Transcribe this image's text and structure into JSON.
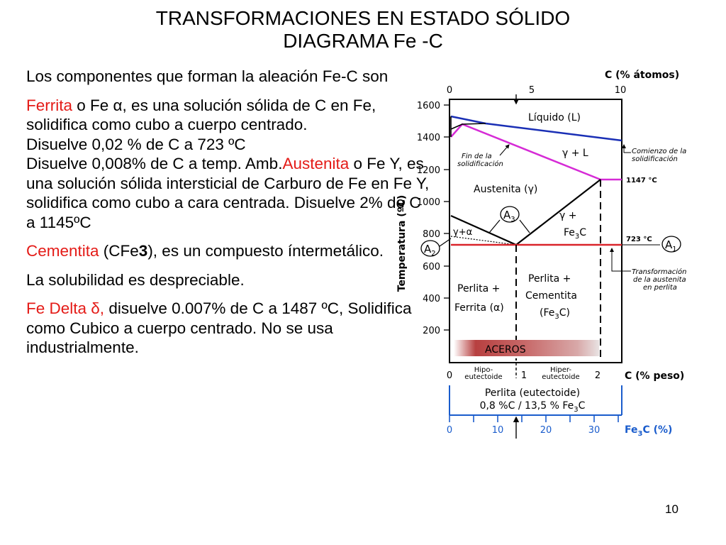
{
  "slide": {
    "title_line1": "TRANSFORMACIONES EN ESTADO SÓLIDO",
    "title_line2": "DIAGRAMA Fe -C",
    "page_number": "10"
  },
  "text": {
    "intro": "Los componentes que forman la aleación Fe-C son",
    "ferrita_term": "Ferrita",
    "ferrita_desc": " o Fe α, es una solución sólida de C en Fe, solidifica como cubo a cuerpo centrado.",
    "ferrita_line2": "Disuelve 0,02 % de C a 723 ºC",
    "ferrita_line3": "Disuelve  0,008% de C a temp. Amb.",
    "austenita_term": "Austenita",
    "austenita_desc": " o  Fe Y, es una solución sólida intersticial de Carburo de Fe en Fe Y, solidifica como cubo a cara centrada.     Disuelve 2% de C a 1145ºC",
    "cementita_term": "Cementita",
    "cementita_desc_a": " (CFe",
    "cementita_sub": "3",
    "cementita_desc_b": "), es un compuesto íntermetálico.",
    "solubilidad": "La solubilidad es despreciable.",
    "delta_term": "Fe Delta δ,",
    "delta_desc": " disuelve 0.007% de C a 1487 ºC, Solidifica como Cubico a cuerpo centrado. No se usa industrialmente."
  },
  "diagram": {
    "top_axis_title": "C (% átomos)",
    "top_ticks": [
      "0",
      "5",
      "10"
    ],
    "y_axis_title": "Temperatura (ºC)",
    "y_ticks": [
      "1600",
      "1400",
      "1200",
      "1000",
      "800",
      "600",
      "400",
      "200"
    ],
    "bottom_axis_title": "C (% peso)",
    "bottom_ticks": [
      "0",
      "1",
      "2"
    ],
    "fe3c_axis_title": "Fe",
    "fe3c_axis_sub": "3",
    "fe3c_axis_rest": "C (%)",
    "fe3c_ticks": [
      "0",
      "10",
      "20",
      "30"
    ],
    "liquido": "Líquido (L)",
    "gamma_l": "γ + L",
    "austenita": "Austenita (γ)",
    "a3_letter": "A",
    "a3_sub": "3",
    "a2_letter": "A",
    "a2_sub": "2",
    "a1_letter": "A",
    "a1_sub": "1",
    "gamma_fe3c_1": "γ +",
    "gamma_fe3c_2a": "Fe",
    "gamma_fe3c_2sub": "3",
    "gamma_fe3c_2b": "C",
    "gamma_alpha": "γ+α",
    "perlita_ferrita_1": "Perlita +",
    "perlita_ferrita_2": "Ferrita (α)",
    "perlita_cem_1": "Perlita +",
    "perlita_cem_2": "Cementita",
    "perlita_cem_3a": "(Fe",
    "perlita_cem_3sub": "3",
    "perlita_cem_3b": "C)",
    "aceros": "ACEROS",
    "fin_solid_1": "Fin de la",
    "fin_solid_2": "solidificación",
    "comienzo_1": "Comienzo de la",
    "comienzo_2": "solidificación",
    "t1147": "1147 °C",
    "t723": "723 °C",
    "transf_1": "Transformación",
    "transf_2": "de la austenita",
    "transf_3": "en perlita",
    "hipo_1": "Hipo-",
    "hipo_2": "eutectoide",
    "hiper_1": "Hiper-",
    "hiper_2": "eutectoide",
    "perlita_eut_1": "Perlita (eutectoide)",
    "perlita_eut_2a": "0,8 %C / 13,5 % Fe",
    "perlita_eut_2sub": "3",
    "perlita_eut_2b": "C",
    "colors": {
      "liquidus": "#1a2fb5",
      "solidus": "#d62bd6",
      "eutectoid": "#d9242b",
      "axis": "#000000",
      "fe3c_axis": "#1a5ccc"
    }
  }
}
